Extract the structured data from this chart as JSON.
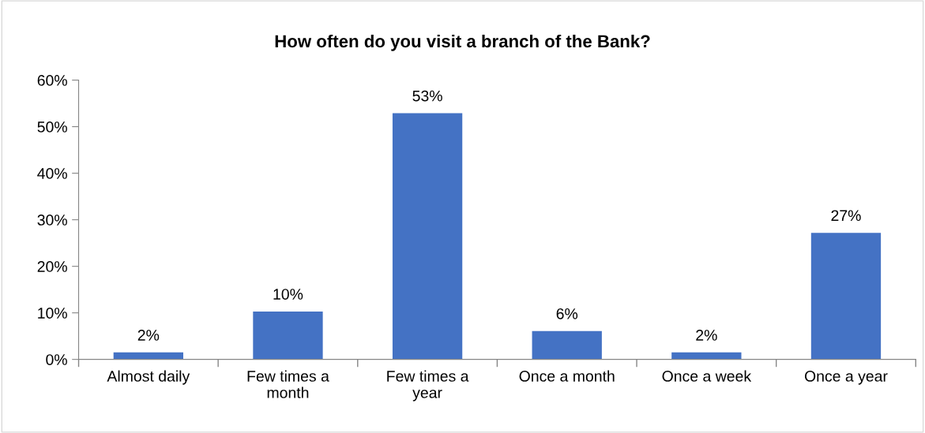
{
  "chart_data": {
    "type": "bar",
    "title": "How often do you visit a branch of the Bank?",
    "categories": [
      "Almost daily",
      "Few times a\nmonth",
      "Few times a\nyear",
      "Once a month",
      "Once a week",
      "Once a year"
    ],
    "values": [
      1.5,
      10.3,
      52.9,
      6.1,
      1.5,
      27.2
    ],
    "value_labels": [
      "2%",
      "10%",
      "53%",
      "6%",
      "2%",
      "27%"
    ],
    "color": "#4472c4",
    "ylim": [
      0,
      60
    ],
    "yticks": [
      {
        "value": 0,
        "label": "0%"
      },
      {
        "value": 10,
        "label": "10%"
      },
      {
        "value": 20,
        "label": "20%"
      },
      {
        "value": 30,
        "label": "30%"
      },
      {
        "value": 40,
        "label": "40%"
      },
      {
        "value": 50,
        "label": "50%"
      },
      {
        "value": 60,
        "label": "60%"
      }
    ],
    "grid": false,
    "legend": false
  }
}
